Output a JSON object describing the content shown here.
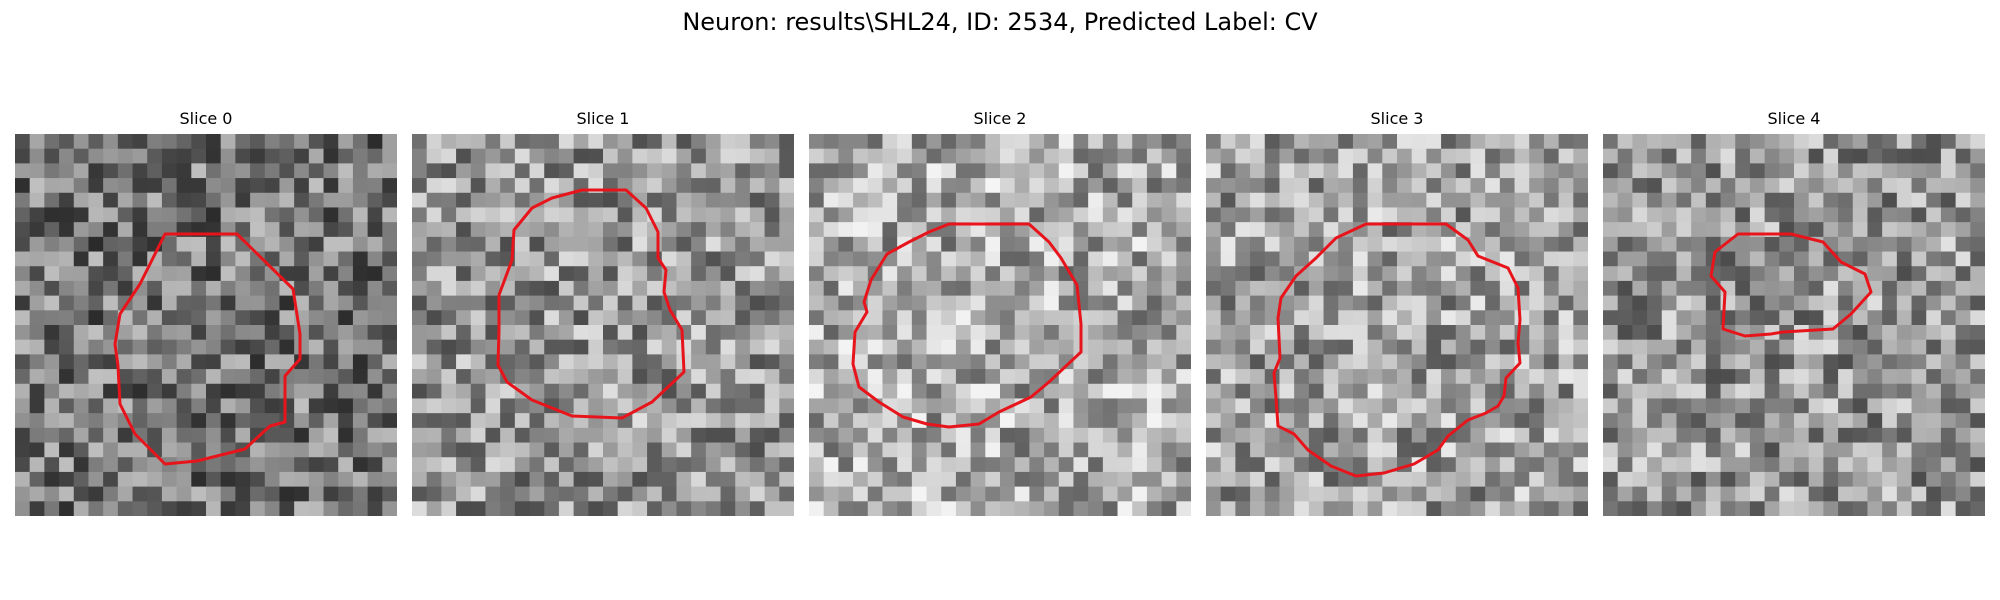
{
  "figure": {
    "title": "Neuron: results\\SHL24, ID: 2534, Predicted Label: CV",
    "contour_color": "#e8141b",
    "colormap": "gray",
    "grid_cells": 26
  },
  "slices": [
    {
      "label": "Slice 0",
      "base_gray": 118,
      "seed": 17
    },
    {
      "label": "Slice 1",
      "base_gray": 150,
      "seed": 29
    },
    {
      "label": "Slice 2",
      "base_gray": 170,
      "seed": 43
    },
    {
      "label": "Slice 3",
      "base_gray": 160,
      "seed": 61
    },
    {
      "label": "Slice 4",
      "base_gray": 150,
      "seed": 83
    }
  ]
}
